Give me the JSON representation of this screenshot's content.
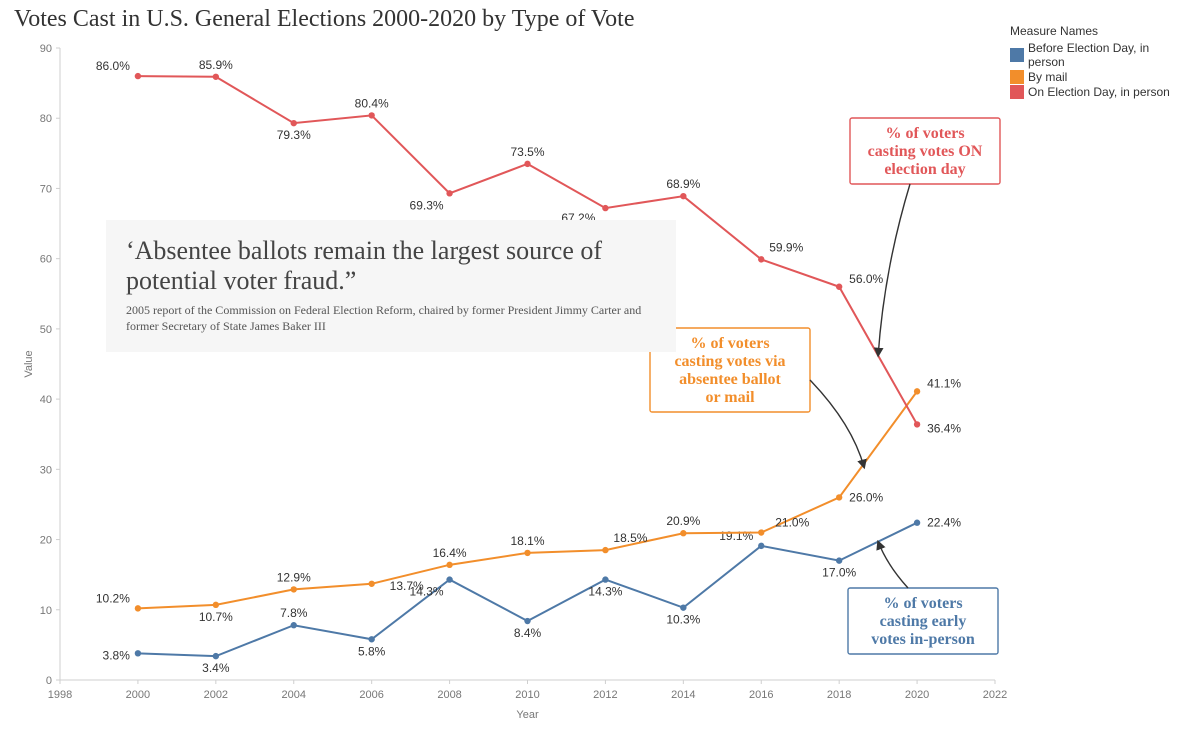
{
  "title": "Votes Cast in U.S. General Elections 2000-2020 by Type of Vote",
  "legend": {
    "title": "Measure Names",
    "items": [
      {
        "label": "Before Election Day, in person",
        "color": "#4e79a7"
      },
      {
        "label": "By mail",
        "color": "#f28e2b"
      },
      {
        "label": "On Election Day, in person",
        "color": "#e15759"
      }
    ]
  },
  "chart": {
    "type": "line",
    "background_color": "#ffffff",
    "grid": false,
    "x": {
      "label": "Year",
      "min": 1998,
      "max": 2022,
      "tick_step": 2,
      "tick_label_fontsize": 11
    },
    "y": {
      "label": "Value",
      "min": 0,
      "max": 90,
      "tick_step": 10,
      "tick_label_fontsize": 11
    },
    "years": [
      2000,
      2002,
      2004,
      2006,
      2008,
      2010,
      2012,
      2014,
      2016,
      2018,
      2020
    ],
    "series": {
      "before": {
        "color": "#4e79a7",
        "values": [
          3.8,
          3.4,
          7.8,
          5.8,
          14.3,
          8.4,
          14.3,
          10.3,
          19.1,
          17.0,
          22.4
        ],
        "labels": [
          "3.8%",
          "3.4%",
          "7.8%",
          "5.8%",
          "14.3%",
          "8.4%",
          "14.3%",
          "10.3%",
          "19.1%",
          "17.0%",
          "22.4%"
        ],
        "line_width": 2,
        "marker": "circle"
      },
      "mail": {
        "color": "#f28e2b",
        "values": [
          10.2,
          10.7,
          12.9,
          13.7,
          16.4,
          18.1,
          18.5,
          20.9,
          21.0,
          26.0,
          41.1
        ],
        "labels": [
          "10.2%",
          "10.7%",
          "12.9%",
          "13.7%",
          "16.4%",
          "18.1%",
          "18.5%",
          "20.9%",
          "21.0%",
          "26.0%",
          "41.1%"
        ],
        "line_width": 2,
        "marker": "circle"
      },
      "onday": {
        "color": "#e15759",
        "values": [
          86.0,
          85.9,
          79.3,
          80.4,
          69.3,
          73.5,
          67.2,
          68.9,
          59.9,
          56.0,
          36.4
        ],
        "labels": [
          "86.0%",
          "85.9%",
          "79.3%",
          "80.4%",
          "69.3%",
          "73.5%",
          "67.2%",
          "68.9%",
          "59.9%",
          "56.0%",
          "36.4%"
        ],
        "line_width": 2,
        "marker": "circle"
      }
    },
    "callouts": {
      "onday": {
        "text_lines": [
          "% of voters",
          "casting votes ON",
          "election day"
        ],
        "color": "#e15759"
      },
      "mail": {
        "text_lines": [
          "% of voters",
          "casting votes via",
          "absentee ballot",
          "or mail"
        ],
        "color": "#f28e2b"
      },
      "before": {
        "text_lines": [
          "% of voters",
          "casting early",
          "votes in-person"
        ],
        "color": "#4e79a7"
      }
    },
    "quote": {
      "text": "‘Absentee ballots remain the largest source of potential voter fraud.”",
      "caption": "2005 report of the Commission on Federal Election Reform, chaired by former President Jimmy Carter and former Secretary of State James Baker III",
      "background": "#f6f6f6"
    }
  }
}
